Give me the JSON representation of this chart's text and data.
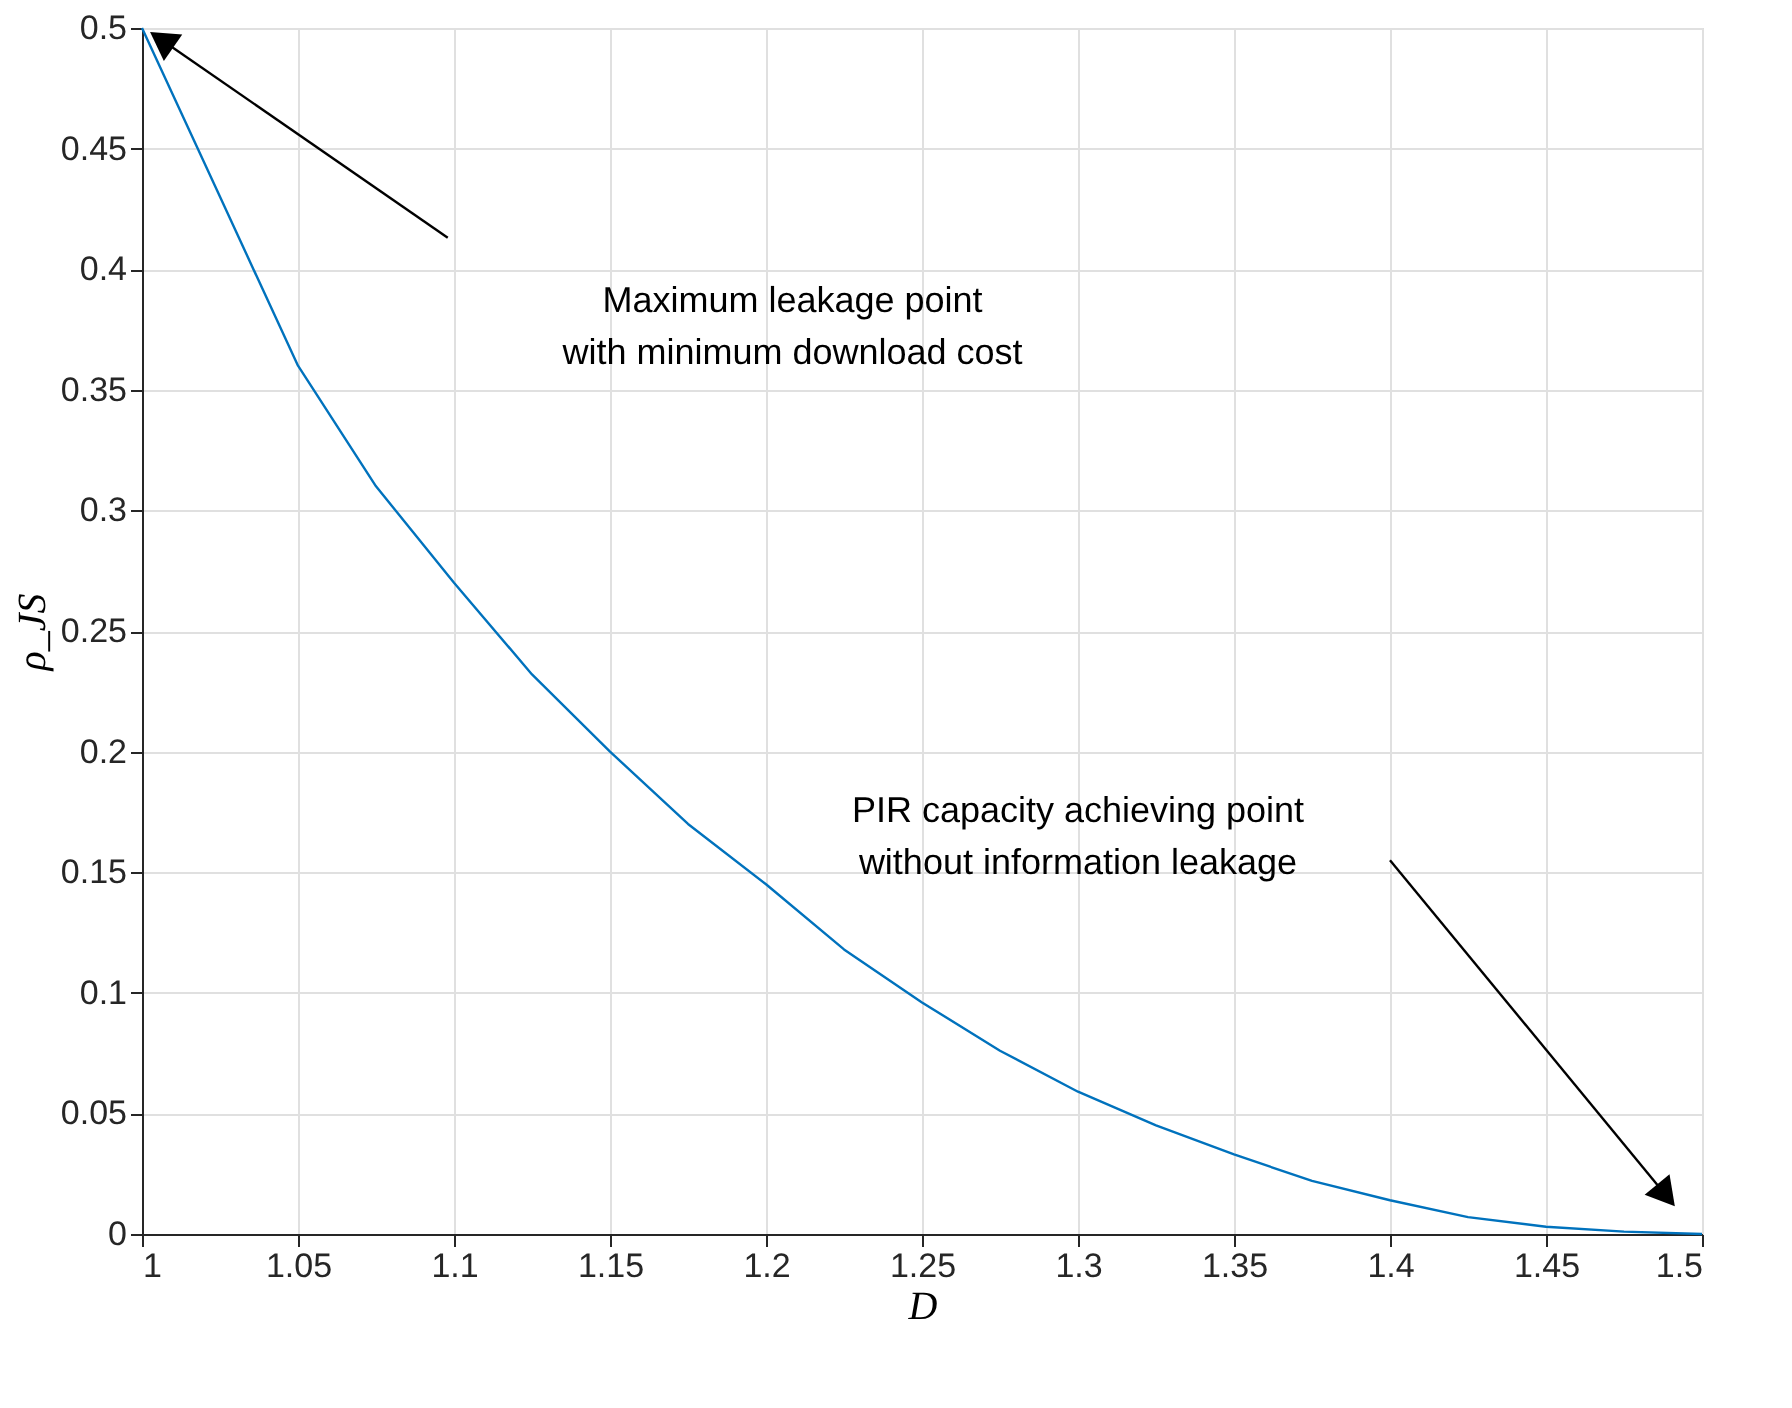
{
  "chart_data": {
    "type": "line",
    "xlabel": "D",
    "ylabel": "ρ_JS",
    "x": [
      1,
      1.025,
      1.05,
      1.075,
      1.1,
      1.125,
      1.15,
      1.175,
      1.2,
      1.225,
      1.25,
      1.275,
      1.3,
      1.325,
      1.35,
      1.375,
      1.4,
      1.425,
      1.45,
      1.475,
      1.5
    ],
    "series": [
      {
        "color": "#0072bd",
        "values": [
          0.5,
          0.43,
          0.36,
          0.31,
          0.27,
          0.232,
          0.2,
          0.17,
          0.145,
          0.118,
          0.096,
          0.076,
          0.059,
          0.045,
          0.033,
          0.022,
          0.014,
          0.007,
          0.003,
          0.001,
          0
        ]
      }
    ],
    "xlim": [
      1,
      1.5
    ],
    "xticks": [
      1,
      1.05,
      1.1,
      1.15,
      1.2,
      1.25,
      1.3,
      1.35,
      1.4,
      1.45,
      1.5
    ],
    "ylim": [
      0,
      0.5
    ],
    "yticks": [
      0,
      0.05,
      0.1,
      0.15,
      0.2,
      0.25,
      0.3,
      0.35,
      0.4,
      0.45,
      0.5
    ],
    "grid": true,
    "marker": "none",
    "line_style": "solid",
    "annotations": [
      "Maximum leakage point\nwith minimum download cost",
      "PIR capacity achieving point\nwithout information leakage"
    ]
  }
}
